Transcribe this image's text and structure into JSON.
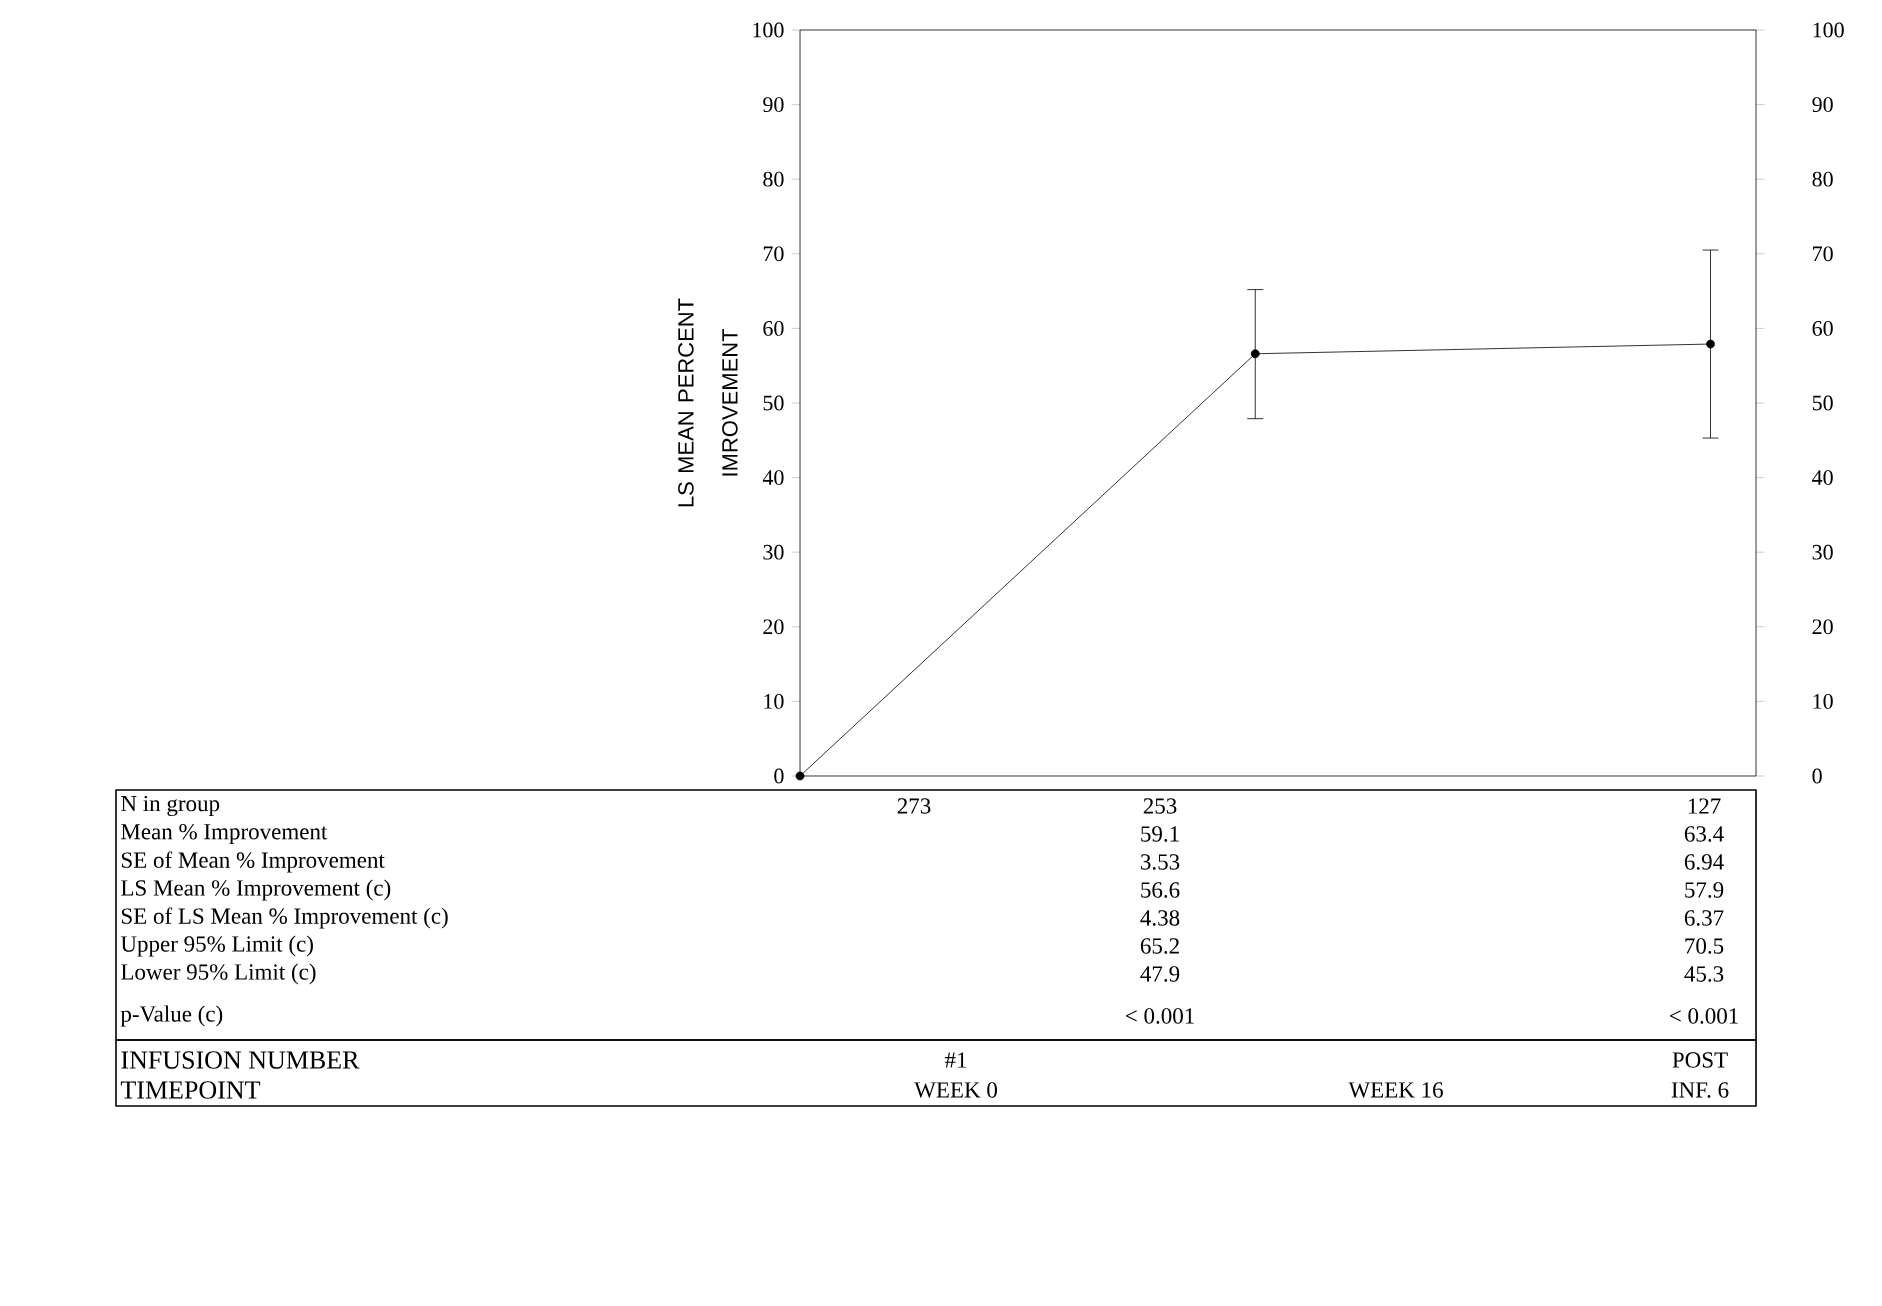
{
  "chart_data": {
    "type": "line",
    "ylabel": "LS MEAN PERCENT IMROVEMENT",
    "categories": [
      null,
      null,
      null
    ],
    "values": [
      0,
      56.6,
      57.9
    ],
    "errors": [
      null,
      [
        47.9,
        65.2
      ],
      [
        45.3,
        70.5
      ]
    ],
    "color": "#000000",
    "marker": "circle",
    "line_style": "solid",
    "ylim": [
      0,
      100
    ],
    "yticks": [
      0,
      10,
      20,
      30,
      40,
      50,
      60,
      70,
      80,
      90,
      100
    ],
    "y2lim": [
      0,
      100
    ],
    "y2ticks": [
      0,
      10,
      20,
      30,
      40,
      50,
      60,
      70,
      80,
      90,
      100
    ],
    "tick_labels": "y",
    "annotations": [
      "N in group",
      "273",
      "253",
      "127",
      "Mean % Improvement",
      "59.1",
      "63.4",
      "SE of Mean % Improvement",
      "3.53",
      "6.94",
      "LS Mean % Improvement (c)",
      "56.6",
      "57.9",
      "SE of LS Mean % Improvement (c)",
      "4.38",
      "6.37",
      "Upper 95% Limit (c)",
      "65.2",
      "70.5",
      "Lower 95% Limit (c)",
      "47.9",
      "45.3",
      "p-Value (c)",
      "< 0.001",
      "< 0.001",
      "INFUSION NUMBER",
      "#1",
      "POST",
      "TIMEPOINT",
      "WEEK 0",
      "WEEK 16",
      "INF. 6"
    ]
  }
}
